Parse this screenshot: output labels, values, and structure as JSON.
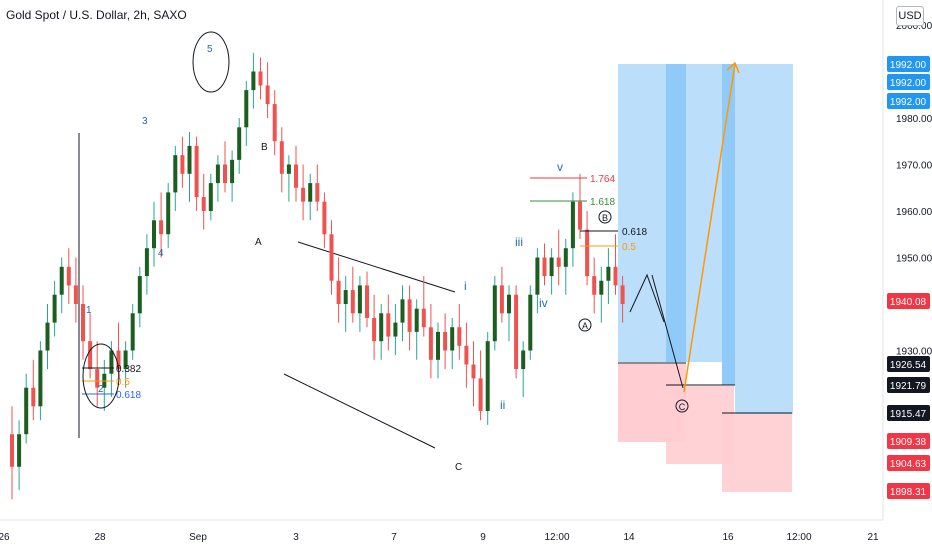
{
  "header": {
    "title": "Gold Spot / U.S. Dollar, 2h, SAXO",
    "currency": "USD"
  },
  "colors": {
    "up": "#26a69a",
    "up_body": "#1b5e20",
    "down": "#ef5350",
    "axis_label_black": "#131722",
    "axis_label_blue": "#2196f3",
    "axis_label_red": "#f23645",
    "target_zone": "#bbdefb",
    "target_zone_dark": "#90caf9",
    "stop_zone": "#ffcdd2",
    "projection": "#ff9800"
  },
  "chart_data": {
    "type": "candlestick",
    "symbol": "Gold Spot / U.S. Dollar",
    "timeframe": "2h",
    "source": "SAXO",
    "y_axis": {
      "ticks": [
        "1930.00",
        "1950.00",
        "1960.00",
        "1970.00",
        "1980.00",
        "2000.00"
      ],
      "price_labels": [
        {
          "value": "1992.00",
          "style": "blue"
        },
        {
          "value": "1992.00",
          "style": "blue"
        },
        {
          "value": "1992.00",
          "style": "blue"
        },
        {
          "value": "1940.08",
          "style": "red"
        },
        {
          "value": "1926.54",
          "style": "black"
        },
        {
          "value": "1921.79",
          "style": "black"
        },
        {
          "value": "1915.47",
          "style": "black"
        },
        {
          "value": "1909.38",
          "style": "red"
        },
        {
          "value": "1904.63",
          "style": "red"
        },
        {
          "value": "1898.31",
          "style": "red"
        }
      ]
    },
    "x_axis": {
      "ticks": [
        "26",
        "28",
        "Sep",
        "3",
        "7",
        "9",
        "12:00",
        "14",
        "16",
        "12:00",
        "21"
      ]
    },
    "wave_labels": {
      "primary": [
        "1",
        "2",
        "3",
        "4",
        "5"
      ],
      "corrective": [
        "A",
        "B",
        "C"
      ],
      "minor": [
        "i",
        "ii",
        "iii",
        "iv",
        "v"
      ],
      "circled": [
        "A",
        "B",
        "C"
      ]
    },
    "fib_levels": [
      {
        "label": "0.382",
        "color": "#131722"
      },
      {
        "label": "0.5",
        "color": "#ff9800"
      },
      {
        "label": "0.618",
        "color": "#2962ff"
      },
      {
        "label": "1.764",
        "color": "#f23645"
      },
      {
        "label": "1.618",
        "color": "#388e3c"
      },
      {
        "label": "0.618",
        "color": "#131722"
      },
      {
        "label": "0.5",
        "color": "#ff9800"
      }
    ],
    "ohlc": [
      [
        1912,
        1918,
        1898,
        1905
      ],
      [
        1905,
        1915,
        1900,
        1912
      ],
      [
        1912,
        1925,
        1910,
        1922
      ],
      [
        1922,
        1928,
        1915,
        1918
      ],
      [
        1918,
        1932,
        1915,
        1930
      ],
      [
        1930,
        1940,
        1926,
        1936
      ],
      [
        1936,
        1945,
        1933,
        1942
      ],
      [
        1942,
        1950,
        1938,
        1948
      ],
      [
        1948,
        1952,
        1940,
        1944
      ],
      [
        1944,
        1950,
        1936,
        1940
      ],
      [
        1940,
        1944,
        1928,
        1932
      ],
      [
        1932,
        1938,
        1924,
        1926
      ],
      [
        1926,
        1932,
        1918,
        1922
      ],
      [
        1922,
        1928,
        1917,
        1925
      ],
      [
        1925,
        1932,
        1920,
        1930
      ],
      [
        1930,
        1936,
        1924,
        1926
      ],
      [
        1926,
        1932,
        1922,
        1930
      ],
      [
        1930,
        1940,
        1928,
        1938
      ],
      [
        1938,
        1948,
        1935,
        1946
      ],
      [
        1946,
        1955,
        1942,
        1952
      ],
      [
        1952,
        1962,
        1948,
        1958
      ],
      [
        1958,
        1964,
        1950,
        1955
      ],
      [
        1955,
        1966,
        1952,
        1964
      ],
      [
        1964,
        1974,
        1960,
        1972
      ],
      [
        1972,
        1976,
        1965,
        1968
      ],
      [
        1968,
        1977,
        1962,
        1974
      ],
      [
        1974,
        1976,
        1960,
        1963
      ],
      [
        1963,
        1968,
        1956,
        1960
      ],
      [
        1960,
        1968,
        1958,
        1966
      ],
      [
        1966,
        1972,
        1962,
        1970
      ],
      [
        1970,
        1975,
        1964,
        1966
      ],
      [
        1966,
        1973,
        1962,
        1971
      ],
      [
        1971,
        1980,
        1968,
        1978
      ],
      [
        1978,
        1988,
        1974,
        1986
      ],
      [
        1986,
        1994,
        1982,
        1990
      ],
      [
        1990,
        1993,
        1984,
        1987
      ],
      [
        1987,
        1992,
        1980,
        1983
      ],
      [
        1983,
        1986,
        1972,
        1975
      ],
      [
        1975,
        1978,
        1964,
        1968
      ],
      [
        1968,
        1972,
        1962,
        1970
      ],
      [
        1970,
        1974,
        1962,
        1965
      ],
      [
        1965,
        1970,
        1958,
        1962
      ],
      [
        1962,
        1968,
        1958,
        1966
      ],
      [
        1966,
        1970,
        1960,
        1962
      ],
      [
        1962,
        1964,
        1952,
        1955
      ],
      [
        1955,
        1958,
        1942,
        1945
      ],
      [
        1945,
        1950,
        1936,
        1940
      ],
      [
        1940,
        1946,
        1934,
        1943
      ],
      [
        1943,
        1948,
        1936,
        1938
      ],
      [
        1938,
        1946,
        1934,
        1944
      ],
      [
        1944,
        1947,
        1935,
        1937
      ],
      [
        1937,
        1942,
        1928,
        1932
      ],
      [
        1932,
        1940,
        1928,
        1938
      ],
      [
        1938,
        1942,
        1930,
        1933
      ],
      [
        1933,
        1940,
        1929,
        1936
      ],
      [
        1936,
        1944,
        1932,
        1941
      ],
      [
        1941,
        1944,
        1930,
        1934
      ],
      [
        1934,
        1941,
        1928,
        1939
      ],
      [
        1939,
        1946,
        1933,
        1935
      ],
      [
        1935,
        1940,
        1924,
        1928
      ],
      [
        1928,
        1936,
        1924,
        1934
      ],
      [
        1934,
        1938,
        1926,
        1930
      ],
      [
        1930,
        1937,
        1926,
        1935
      ],
      [
        1935,
        1940,
        1928,
        1931
      ],
      [
        1931,
        1936,
        1922,
        1927
      ],
      [
        1927,
        1932,
        1918,
        1924
      ],
      [
        1924,
        1930,
        1915,
        1917
      ],
      [
        1917,
        1934,
        1914,
        1932
      ],
      [
        1932,
        1946,
        1930,
        1944
      ],
      [
        1944,
        1948,
        1936,
        1938
      ],
      [
        1938,
        1944,
        1932,
        1942
      ],
      [
        1942,
        1944,
        1924,
        1926
      ],
      [
        1926,
        1932,
        1920,
        1930
      ],
      [
        1930,
        1944,
        1928,
        1942
      ],
      [
        1942,
        1952,
        1938,
        1950
      ],
      [
        1950,
        1953,
        1944,
        1946
      ],
      [
        1946,
        1952,
        1942,
        1950
      ],
      [
        1950,
        1956,
        1944,
        1948
      ],
      [
        1948,
        1954,
        1942,
        1952
      ],
      [
        1952,
        1964,
        1948,
        1962
      ],
      [
        1962,
        1968,
        1954,
        1956
      ],
      [
        1956,
        1960,
        1944,
        1946
      ],
      [
        1946,
        1950,
        1938,
        1942
      ],
      [
        1942,
        1948,
        1936,
        1945
      ],
      [
        1945,
        1952,
        1940,
        1948
      ],
      [
        1948,
        1955,
        1942,
        1944
      ],
      [
        1944,
        1946,
        1936,
        1940
      ]
    ]
  }
}
